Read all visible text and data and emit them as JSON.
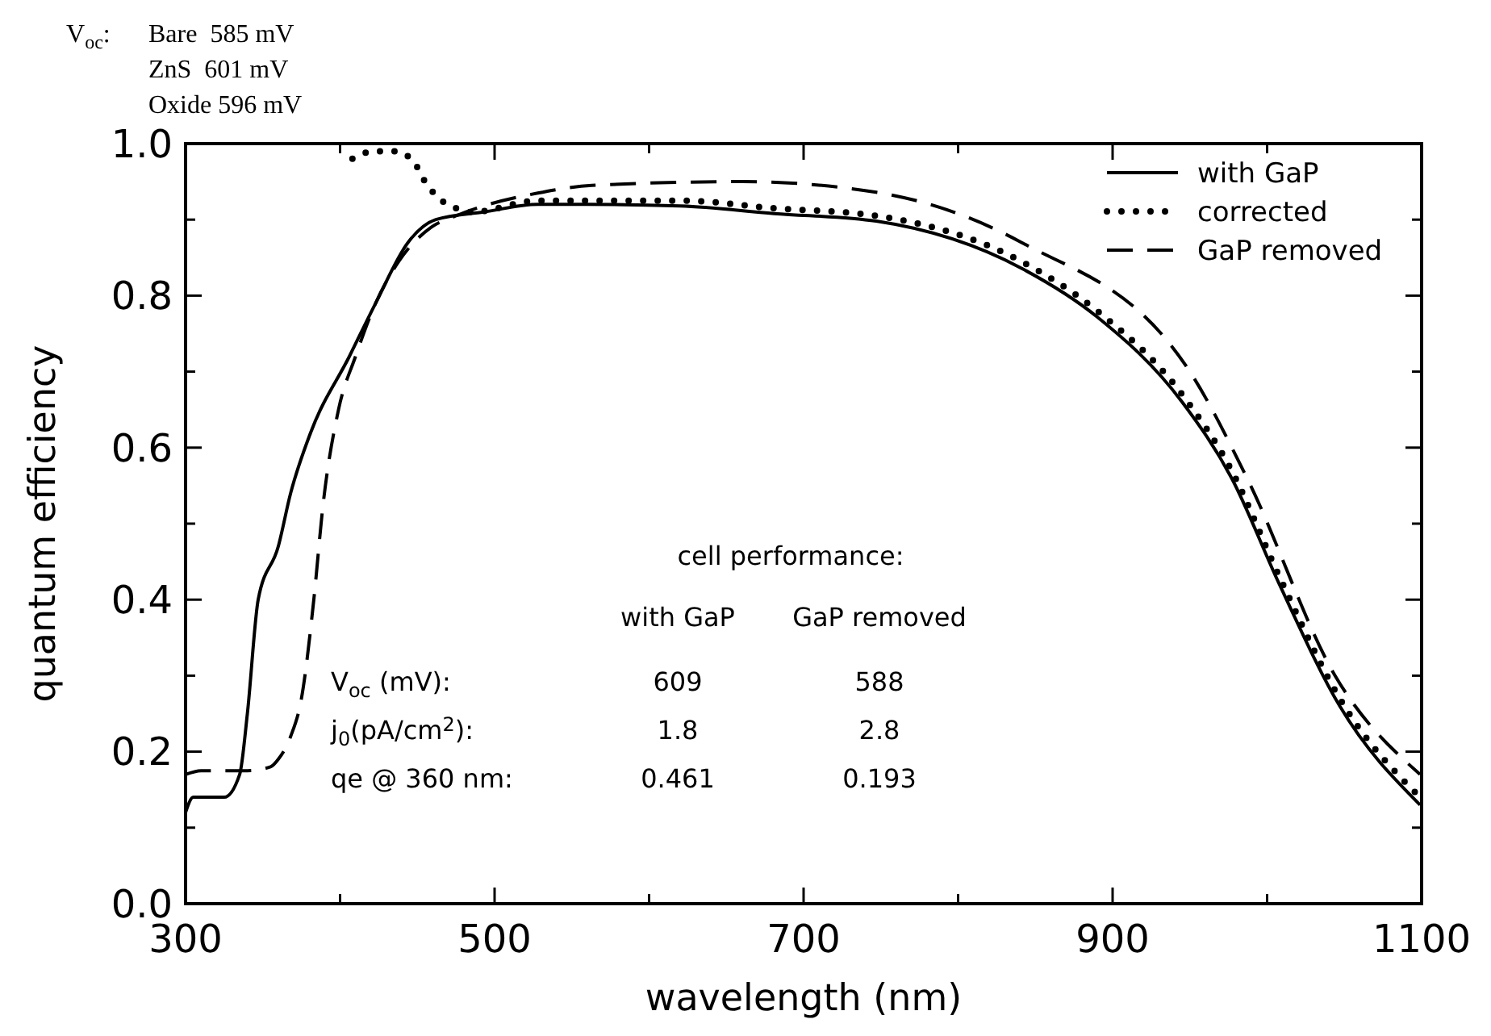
{
  "chart_data": {
    "type": "line",
    "xlabel": "wavelength (nm)",
    "ylabel": "quantum efficiency",
    "xlim": [
      300,
      1100
    ],
    "ylim": [
      0,
      1
    ],
    "xticks": [
      300,
      {
        "value": 400,
        "label": null
      },
      500,
      {
        "value": 600,
        "label": null
      },
      700,
      {
        "value": 800,
        "label": null
      },
      900,
      {
        "value": 1000,
        "label": null
      },
      1100
    ],
    "yticks": [
      {
        "value": 0,
        "label": "0.0"
      },
      {
        "value": 0.1,
        "label": null
      },
      {
        "value": 0.2,
        "label": "0.2"
      },
      {
        "value": 0.3,
        "label": null
      },
      {
        "value": 0.4,
        "label": "0.4"
      },
      {
        "value": 0.5,
        "label": null
      },
      {
        "value": 0.6,
        "label": "0.6"
      },
      {
        "value": 0.7,
        "label": null
      },
      {
        "value": 0.8,
        "label": "0.8"
      },
      {
        "value": 0.9,
        "label": null
      },
      {
        "value": 1,
        "label": "1.0"
      }
    ],
    "grid": false,
    "legend": "top right",
    "series": [
      {
        "name": "with GaP",
        "color": "#000000",
        "line_style": "solid",
        "x": [
          300,
          305,
          325,
          335,
          340,
          347,
          360,
          368,
          381,
          406,
          423,
          444,
          462,
          493,
          528,
          560,
          620,
          681,
          747,
          841,
          890,
          945,
          977,
          1008,
          1047,
          1099
        ],
        "values": [
          0.12,
          0.14,
          0.14,
          0.17,
          0.25,
          0.4,
          0.47,
          0.54,
          0.62,
          0.72,
          0.79,
          0.87,
          0.9,
          0.91,
          0.92,
          0.92,
          0.918,
          0.908,
          0.898,
          0.836,
          0.772,
          0.66,
          0.56,
          0.42,
          0.26,
          0.13
        ]
      },
      {
        "name": "corrected",
        "color": "#000000",
        "line_style": "dotted",
        "x": [
          408,
          422,
          436,
          448,
          455,
          463,
          475,
          486,
          528,
          560,
          620,
          681,
          747,
          841,
          890,
          945,
          977,
          1008,
          1047,
          1099
        ],
        "values": [
          0.98,
          0.99,
          0.99,
          0.975,
          0.95,
          0.93,
          0.915,
          0.91,
          0.925,
          0.925,
          0.925,
          0.915,
          0.905,
          0.845,
          0.78,
          0.67,
          0.57,
          0.43,
          0.27,
          0.14
        ]
      },
      {
        "name": "GaP removed",
        "color": "#000000",
        "line_style": "dashed",
        "x": [
          300,
          310,
          340,
          355,
          360,
          368,
          375,
          383,
          389,
          399,
          410,
          423,
          438,
          459,
          475,
          528,
          563,
          660,
          747,
          841,
          950,
          987,
          1044,
          1099
        ],
        "values": [
          0.17,
          0.175,
          0.175,
          0.18,
          0.19,
          0.22,
          0.27,
          0.4,
          0.525,
          0.65,
          0.72,
          0.79,
          0.845,
          0.89,
          0.905,
          0.935,
          0.945,
          0.95,
          0.936,
          0.87,
          0.7,
          0.56,
          0.3,
          0.17
        ]
      }
    ],
    "annotations": [
      "V$_{oc}$:",
      "Bare  585 mV",
      "ZnS  601 mV",
      "Oxide 596 mV",
      "cell performance:",
      "with GaP",
      "GaP removed",
      "V$_{oc}$ (mV):",
      "609",
      "588",
      "j$_{0}$(pA/cm$^{2}$):",
      "1.8",
      "2.8",
      "qe @ 360 nm:",
      "0.461",
      "0.193"
    ]
  }
}
